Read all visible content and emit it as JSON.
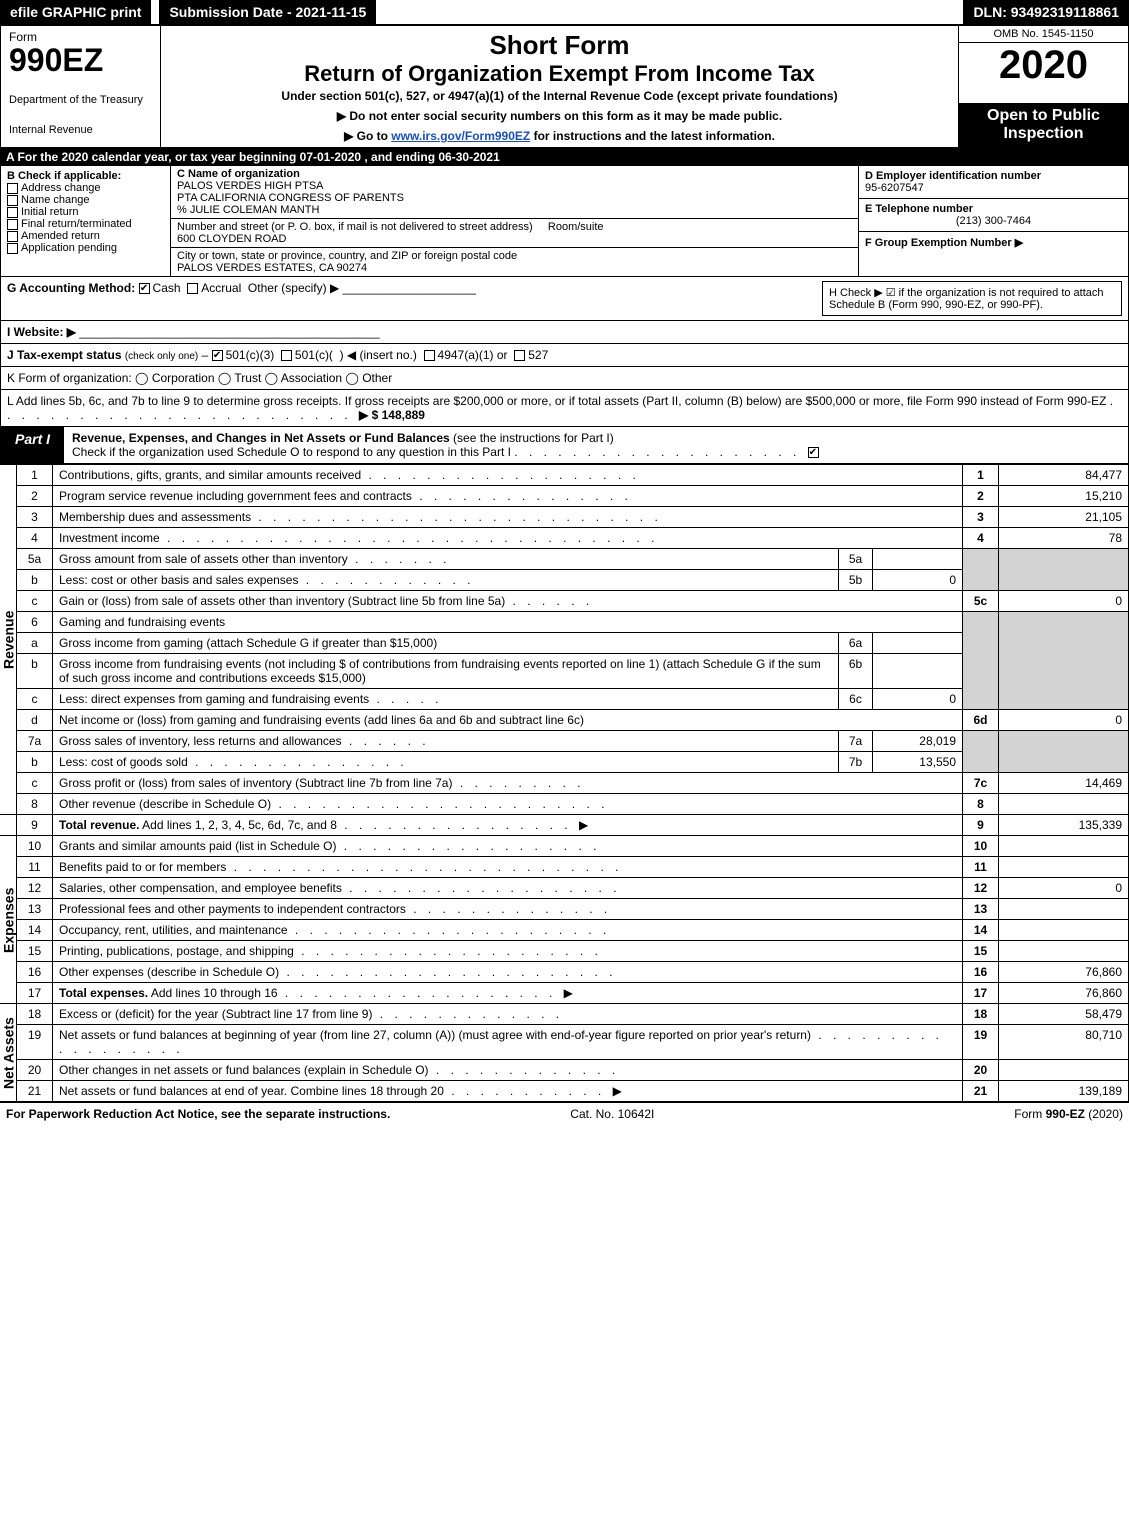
{
  "top": {
    "efile": "efile GRAPHIC print",
    "submission": "Submission Date - 2021-11-15",
    "dln": "DLN: 93492319118861"
  },
  "header": {
    "form_word": "Form",
    "form_num": "990EZ",
    "dept1": "Department of the Treasury",
    "dept2": "Internal Revenue",
    "short": "Short Form",
    "title": "Return of Organization Exempt From Income Tax",
    "sub": "Under section 501(c), 527, or 4947(a)(1) of the Internal Revenue Code (except private foundations)",
    "note1": "▶ Do not enter social security numbers on this form as it may be made public.",
    "note2_pre": "▶ Go to ",
    "note2_link": "www.irs.gov/Form990EZ",
    "note2_post": " for instructions and the latest information.",
    "omb": "OMB No. 1545-1150",
    "year": "2020",
    "open": "Open to Public Inspection"
  },
  "lineA": "A  For the 2020 calendar year, or tax year beginning 07-01-2020 , and ending 06-30-2021",
  "sectionB": {
    "title": "B  Check if applicable:",
    "items": [
      "Address change",
      "Name change",
      "Initial return",
      "Final return/terminated",
      "Amended return",
      "Application pending"
    ]
  },
  "sectionC": {
    "c_lbl": "C Name of organization",
    "name1": "PALOS VERDES HIGH PTSA",
    "name2": "PTA CALIFORNIA CONGRESS OF PARENTS",
    "care": "% JULIE COLEMAN MANTH",
    "addr_lbl": "Number and street (or P. O. box, if mail is not delivered to street address)",
    "room_lbl": "Room/suite",
    "addr": "600 CLOYDEN ROAD",
    "city_lbl": "City or town, state or province, country, and ZIP or foreign postal code",
    "city": "PALOS VERDES ESTATES, CA  90274"
  },
  "sectionD": {
    "d_lbl": "D Employer identification number",
    "ein": "95-6207547",
    "e_lbl": "E Telephone number",
    "phone": "(213) 300-7464",
    "f_lbl": "F Group Exemption Number  ▶"
  },
  "lineG": {
    "label": "G Accounting Method:",
    "cash": "Cash",
    "accrual": "Accrual",
    "other": "Other (specify) ▶"
  },
  "lineH": "H  Check ▶  ☑  if the organization is not required to attach Schedule B (Form 990, 990-EZ, or 990-PF).",
  "lineI": "I Website: ▶",
  "lineJ": "J Tax-exempt status (check only one) – ☑ 501(c)(3)  ◯ 501(c)(  ) ◀ (insert no.)  ◯ 4947(a)(1) or  ◯ 527",
  "lineK": "K Form of organization:   ◯ Corporation   ◯ Trust   ◯ Association   ◯ Other",
  "lineL": {
    "text": "L Add lines 5b, 6c, and 7b to line 9 to determine gross receipts. If gross receipts are $200,000 or more, or if total assets (Part II, column (B) below) are $500,000 or more, file Form 990 instead of Form 990-EZ",
    "amount": "▶ $ 148,889"
  },
  "part1": {
    "tag": "Part I",
    "title": "Revenue, Expenses, and Changes in Net Assets or Fund Balances",
    "hint": "(see the instructions for Part I)",
    "check_text": "Check if the organization used Schedule O to respond to any question in this Part I"
  },
  "rows": {
    "r1": {
      "n": "1",
      "d": "Contributions, gifts, grants, and similar amounts received",
      "box": "1",
      "val": "84,477"
    },
    "r2": {
      "n": "2",
      "d": "Program service revenue including government fees and contracts",
      "box": "2",
      "val": "15,210"
    },
    "r3": {
      "n": "3",
      "d": "Membership dues and assessments",
      "box": "3",
      "val": "21,105"
    },
    "r4": {
      "n": "4",
      "d": "Investment income",
      "box": "4",
      "val": "78"
    },
    "r5a": {
      "n": "5a",
      "d": "Gross amount from sale of assets other than inventory",
      "in": "5a",
      "inval": ""
    },
    "r5b": {
      "n": "b",
      "d": "Less: cost or other basis and sales expenses",
      "in": "5b",
      "inval": "0"
    },
    "r5c": {
      "n": "c",
      "d": "Gain or (loss) from sale of assets other than inventory (Subtract line 5b from line 5a)",
      "box": "5c",
      "val": "0"
    },
    "r6": {
      "n": "6",
      "d": "Gaming and fundraising events"
    },
    "r6a": {
      "n": "a",
      "d": "Gross income from gaming (attach Schedule G if greater than $15,000)",
      "in": "6a",
      "inval": ""
    },
    "r6b": {
      "n": "b",
      "d": "Gross income from fundraising events (not including $                 of contributions from fundraising events reported on line 1) (attach Schedule G if the sum of such gross income and contributions exceeds $15,000)",
      "in": "6b",
      "inval": ""
    },
    "r6c": {
      "n": "c",
      "d": "Less: direct expenses from gaming and fundraising events",
      "in": "6c",
      "inval": "0"
    },
    "r6d": {
      "n": "d",
      "d": "Net income or (loss) from gaming and fundraising events (add lines 6a and 6b and subtract line 6c)",
      "box": "6d",
      "val": "0"
    },
    "r7a": {
      "n": "7a",
      "d": "Gross sales of inventory, less returns and allowances",
      "in": "7a",
      "inval": "28,019"
    },
    "r7b": {
      "n": "b",
      "d": "Less: cost of goods sold",
      "in": "7b",
      "inval": "13,550"
    },
    "r7c": {
      "n": "c",
      "d": "Gross profit or (loss) from sales of inventory (Subtract line 7b from line 7a)",
      "box": "7c",
      "val": "14,469"
    },
    "r8": {
      "n": "8",
      "d": "Other revenue (describe in Schedule O)",
      "box": "8",
      "val": ""
    },
    "r9": {
      "n": "9",
      "d": "Total revenue. Add lines 1, 2, 3, 4, 5c, 6d, 7c, and 8",
      "box": "9",
      "val": "135,339",
      "arrow": true,
      "bold": true
    },
    "r10": {
      "n": "10",
      "d": "Grants and similar amounts paid (list in Schedule O)",
      "box": "10",
      "val": ""
    },
    "r11": {
      "n": "11",
      "d": "Benefits paid to or for members",
      "box": "11",
      "val": ""
    },
    "r12": {
      "n": "12",
      "d": "Salaries, other compensation, and employee benefits",
      "box": "12",
      "val": "0"
    },
    "r13": {
      "n": "13",
      "d": "Professional fees and other payments to independent contractors",
      "box": "13",
      "val": ""
    },
    "r14": {
      "n": "14",
      "d": "Occupancy, rent, utilities, and maintenance",
      "box": "14",
      "val": ""
    },
    "r15": {
      "n": "15",
      "d": "Printing, publications, postage, and shipping",
      "box": "15",
      "val": ""
    },
    "r16": {
      "n": "16",
      "d": "Other expenses (describe in Schedule O)",
      "box": "16",
      "val": "76,860"
    },
    "r17": {
      "n": "17",
      "d": "Total expenses. Add lines 10 through 16",
      "box": "17",
      "val": "76,860",
      "arrow": true,
      "bold": true
    },
    "r18": {
      "n": "18",
      "d": "Excess or (deficit) for the year (Subtract line 17 from line 9)",
      "box": "18",
      "val": "58,479"
    },
    "r19": {
      "n": "19",
      "d": "Net assets or fund balances at beginning of year (from line 27, column (A)) (must agree with end-of-year figure reported on prior year's return)",
      "box": "19",
      "val": "80,710"
    },
    "r20": {
      "n": "20",
      "d": "Other changes in net assets or fund balances (explain in Schedule O)",
      "box": "20",
      "val": ""
    },
    "r21": {
      "n": "21",
      "d": "Net assets or fund balances at end of year. Combine lines 18 through 20",
      "box": "21",
      "val": "139,189",
      "arrow": true
    }
  },
  "sections": {
    "revenue": "Revenue",
    "expenses": "Expenses",
    "netassets": "Net Assets"
  },
  "footer": {
    "left": "For Paperwork Reduction Act Notice, see the separate instructions.",
    "cat": "Cat. No. 10642I",
    "right": "Form 990-EZ (2020)"
  }
}
